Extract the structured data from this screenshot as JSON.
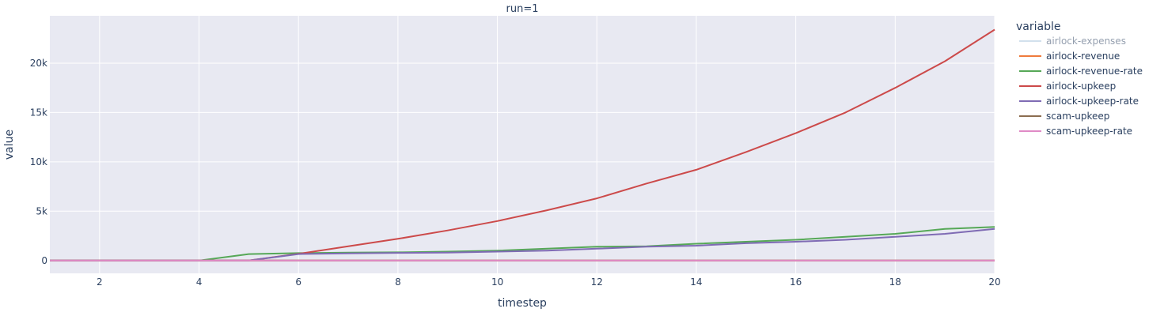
{
  "chart_data": {
    "type": "line",
    "title": "run=1",
    "xlabel": "timestep",
    "ylabel": "value",
    "xlim": [
      1,
      20
    ],
    "ylim": [
      -1300,
      24800
    ],
    "x_ticks": [
      2,
      4,
      6,
      8,
      10,
      12,
      14,
      16,
      18,
      20
    ],
    "y_ticks": [
      0,
      5000,
      10000,
      15000,
      20000
    ],
    "y_tick_labels": [
      "0",
      "5k",
      "10k",
      "15k",
      "20k"
    ],
    "grid": true,
    "legend_title": "variable",
    "legend_position": "right",
    "x": [
      1,
      2,
      3,
      4,
      5,
      6,
      7,
      8,
      9,
      10,
      11,
      12,
      13,
      14,
      15,
      16,
      17,
      18,
      19,
      20
    ],
    "series": [
      {
        "name": "airlock-expenses",
        "color": "#a6c2dc",
        "legend_dim": true,
        "values": [
          0,
          0,
          0,
          0,
          0,
          0,
          0,
          0,
          0,
          0,
          0,
          0,
          0,
          0,
          0,
          0,
          0,
          0,
          0,
          0
        ]
      },
      {
        "name": "airlock-revenue",
        "color": "#ef7b3c",
        "values": [
          0,
          0,
          0,
          0,
          0,
          0,
          0,
          0,
          0,
          0,
          0,
          0,
          0,
          0,
          0,
          0,
          0,
          0,
          0,
          0
        ]
      },
      {
        "name": "airlock-revenue-rate",
        "color": "#56a857",
        "values": [
          0,
          0,
          0,
          0,
          650,
          750,
          800,
          830,
          900,
          1000,
          1200,
          1400,
          1450,
          1700,
          1900,
          2100,
          2400,
          2700,
          3200,
          3400
        ]
      },
      {
        "name": "airlock-upkeep",
        "color": "#cc4a4a",
        "values": [
          0,
          0,
          0,
          0,
          0,
          680,
          1450,
          2200,
          3050,
          4000,
          5100,
          6300,
          7800,
          9200,
          11000,
          12900,
          15000,
          17500,
          20200,
          23400
        ]
      },
      {
        "name": "airlock-upkeep-rate",
        "color": "#7f6bb4",
        "values": [
          0,
          0,
          0,
          0,
          0,
          650,
          720,
          770,
          800,
          900,
          1000,
          1200,
          1400,
          1500,
          1750,
          1900,
          2100,
          2400,
          2700,
          3200
        ]
      },
      {
        "name": "scam-upkeep",
        "color": "#8c6d50",
        "values": [
          0,
          0,
          0,
          0,
          0,
          0,
          0,
          0,
          0,
          0,
          0,
          0,
          0,
          0,
          0,
          0,
          0,
          0,
          0,
          0
        ]
      },
      {
        "name": "scam-upkeep-rate",
        "color": "#e08ac6",
        "values": [
          0,
          0,
          0,
          0,
          0,
          0,
          0,
          0,
          0,
          0,
          0,
          0,
          0,
          0,
          0,
          0,
          0,
          0,
          0,
          0
        ]
      }
    ]
  }
}
